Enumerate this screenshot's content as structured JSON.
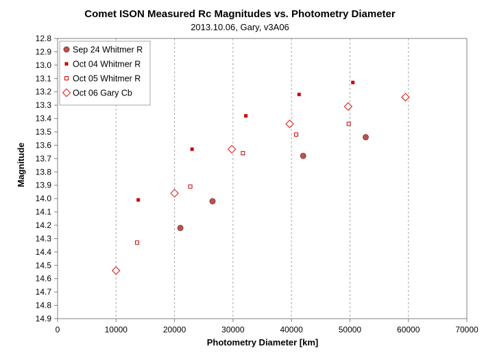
{
  "chart_data": {
    "type": "scatter",
    "title": "Comet ISON Measured Rc Magnitudes  vs.  Photometry  Diameter",
    "subtitle": "2013.10.06,  Gary,  v3A06",
    "xlabel": "Photometry Diameter  [km]",
    "ylabel": "Magnitude",
    "xlim": [
      0,
      70000
    ],
    "ylim": [
      12.8,
      14.9
    ],
    "y_inverted": true,
    "grid": "vertical",
    "legend_position": "top-left",
    "x_ticks": [
      "0",
      "10000",
      "20000",
      "30000",
      "40000",
      "50000",
      "60000",
      "70000"
    ],
    "y_ticks": [
      "12.8",
      "12.9",
      "13.0",
      "13.1",
      "13.2",
      "13.3",
      "13.4",
      "13.5",
      "13.6",
      "13.7",
      "13.8",
      "13.9",
      "14.0",
      "14.1",
      "14.2",
      "14.3",
      "14.4",
      "14.5",
      "14.6",
      "14.7",
      "14.8",
      "14.9"
    ],
    "series": [
      {
        "name": "Sep 24 Whitmer R",
        "marker": "circle",
        "color": "#c0504d",
        "edge": "#7f3f3d",
        "x": [
          21000,
          26500,
          42000,
          52700
        ],
        "y": [
          14.22,
          14.02,
          13.68,
          13.54
        ]
      },
      {
        "name": "Oct 04 Whitmer R",
        "marker": "square-filled",
        "color": "#cc0000",
        "x": [
          13800,
          23000,
          32200,
          41300,
          50500
        ],
        "y": [
          14.01,
          13.63,
          13.38,
          13.22,
          13.13
        ]
      },
      {
        "name": "Oct 05 Whitmer R",
        "marker": "square-open",
        "color": "#cc0000",
        "x": [
          13600,
          22700,
          31700,
          40800,
          49800
        ],
        "y": [
          14.33,
          13.91,
          13.66,
          13.52,
          13.44
        ]
      },
      {
        "name": "Oct 06 Gary Cb",
        "marker": "diamond-open",
        "color": "#e03030",
        "x": [
          10000,
          20000,
          29800,
          39700,
          49700,
          59500
        ],
        "y": [
          14.54,
          13.96,
          13.63,
          13.44,
          13.31,
          13.24
        ]
      }
    ]
  }
}
